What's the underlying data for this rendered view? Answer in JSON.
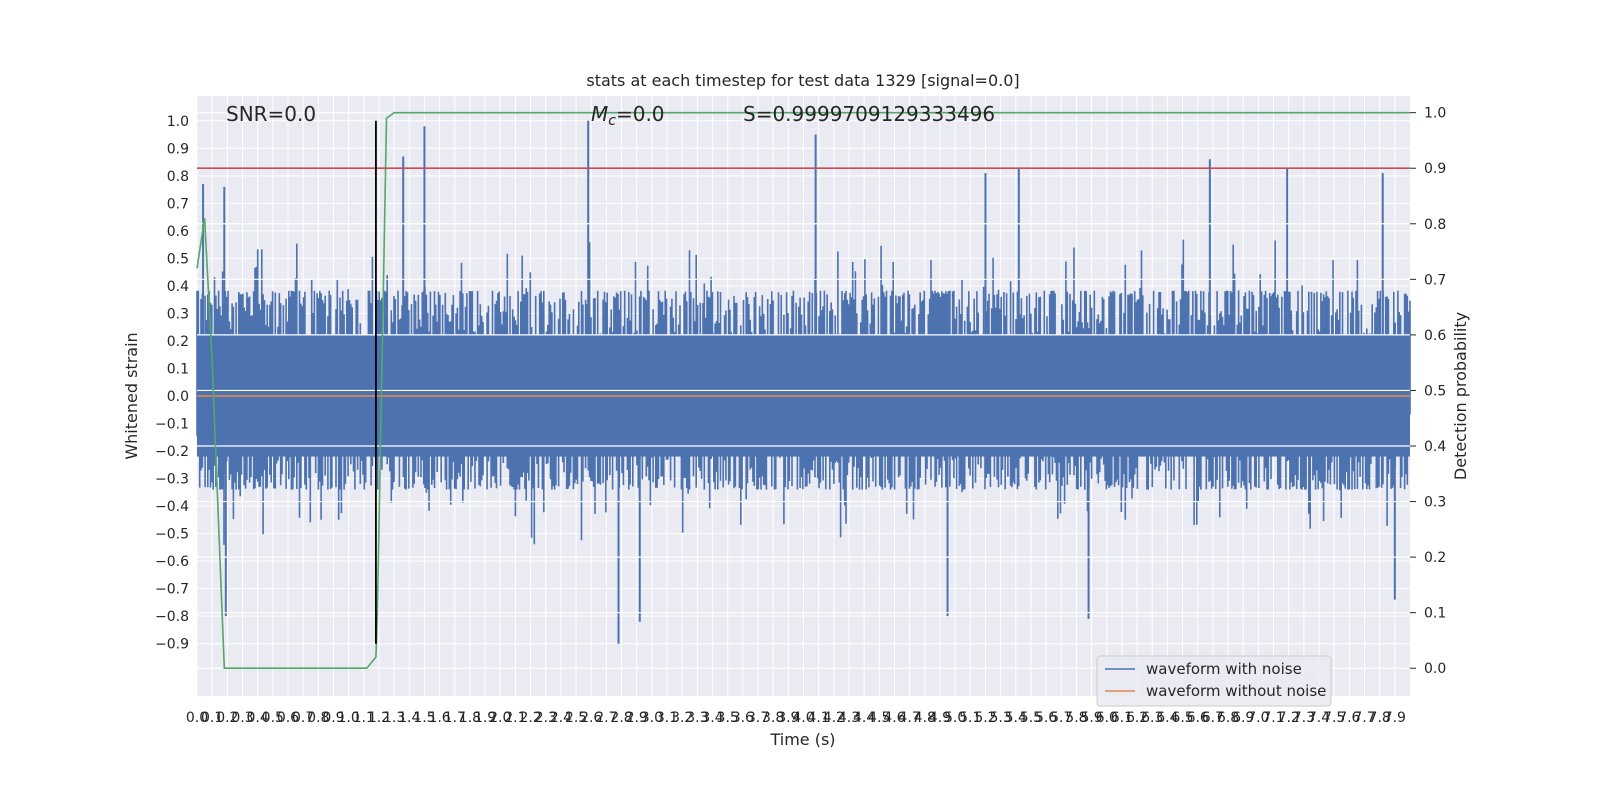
{
  "chart_data": {
    "type": "line",
    "title": "stats at each timestep for test data 1329 [signal=0.0]",
    "xlabel": "Time (s)",
    "ylabel_left": "Whitened strain",
    "ylabel_right": "Detection probability",
    "xlim": [
      0.0,
      8.0
    ],
    "ylim_left": [
      -1.09,
      1.09
    ],
    "ylim_right": [
      -0.05,
      1.03
    ],
    "x_ticks": [
      "0.0",
      "0.1",
      "0.2",
      "0.3",
      "0.4",
      "0.5",
      "0.6",
      "0.7",
      "0.8",
      "0.9",
      "1.0",
      "1.1",
      "1.2",
      "1.3",
      "1.4",
      "1.5",
      "1.6",
      "1.7",
      "1.8",
      "1.9",
      "2.0",
      "2.1",
      "2.2",
      "2.3",
      "2.4",
      "2.5",
      "2.6",
      "2.7",
      "2.8",
      "2.9",
      "3.0",
      "3.1",
      "3.2",
      "3.3",
      "3.4",
      "3.5",
      "3.6",
      "3.7",
      "3.8",
      "3.9",
      "4.0",
      "4.1",
      "4.2",
      "4.3",
      "4.4",
      "4.5",
      "4.6",
      "4.7",
      "4.8",
      "4.9",
      "5.0",
      "5.1",
      "5.2",
      "5.3",
      "5.4",
      "5.5",
      "5.6",
      "5.7",
      "5.8",
      "5.9",
      "6.0",
      "6.1",
      "6.2",
      "6.3",
      "6.4",
      "6.5",
      "6.6",
      "6.7",
      "6.8",
      "6.9",
      "7.0",
      "7.1",
      "7.2",
      "7.3",
      "7.4",
      "7.5",
      "7.6",
      "7.7",
      "7.8",
      "7.9"
    ],
    "y_ticks_left": [
      "−0.9",
      "−0.8",
      "−0.7",
      "−0.6",
      "−0.5",
      "−0.4",
      "−0.3",
      "−0.2",
      "−0.1",
      "0.0",
      "0.1",
      "0.2",
      "0.3",
      "0.4",
      "0.5",
      "0.6",
      "0.7",
      "0.8",
      "0.9",
      "1.0"
    ],
    "y_ticks_right": [
      "0.0",
      "0.1",
      "0.2",
      "0.3",
      "0.4",
      "0.5",
      "0.6",
      "0.7",
      "0.8",
      "0.9",
      "1.0"
    ],
    "annotations": {
      "snr": "SNR=0.0",
      "mc_symbol": "M",
      "mc_sub": "c",
      "mc_value": "=0.0",
      "score": "S=0.9999709129333496"
    },
    "series": [
      {
        "name": "waveform with noise",
        "color": "#4c72b0",
        "axis": "left",
        "envelope_typical": [
          -0.4,
          0.45
        ],
        "spikes": [
          {
            "x": 0.04,
            "y": 0.77
          },
          {
            "x": 0.18,
            "y": 0.76
          },
          {
            "x": 0.19,
            "y": -0.8
          },
          {
            "x": 1.36,
            "y": 0.87
          },
          {
            "x": 1.5,
            "y": 0.98
          },
          {
            "x": 2.58,
            "y": 1.0
          },
          {
            "x": 2.78,
            "y": -0.9
          },
          {
            "x": 2.92,
            "y": -0.82
          },
          {
            "x": 4.08,
            "y": 0.95
          },
          {
            "x": 4.95,
            "y": -0.8
          },
          {
            "x": 5.2,
            "y": 0.81
          },
          {
            "x": 5.42,
            "y": 0.83
          },
          {
            "x": 5.88,
            "y": -0.81
          },
          {
            "x": 6.68,
            "y": 0.86
          },
          {
            "x": 7.19,
            "y": 0.83
          },
          {
            "x": 7.82,
            "y": 0.81
          },
          {
            "x": 7.9,
            "y": -0.74
          }
        ]
      },
      {
        "name": "waveform without noise",
        "color": "#dd8452",
        "axis": "left",
        "constant": 0.0
      },
      {
        "name": "",
        "color": "#55a868",
        "axis": "right",
        "x": [
          0.0,
          0.05,
          0.1,
          0.18,
          1.12,
          1.18,
          1.19,
          1.25,
          1.3,
          8.0
        ],
        "y": [
          0.72,
          0.81,
          0.55,
          0.0,
          0.0,
          0.02,
          0.1,
          0.99,
          1.0,
          1.0
        ]
      }
    ],
    "reference_lines": [
      {
        "axis": "right",
        "orientation": "horizontal",
        "value": 0.9,
        "color": "#c44e52"
      },
      {
        "axis": "left",
        "orientation": "vertical",
        "value": 1.18,
        "color": "#000000",
        "ymin": -0.9,
        "ymax": 1.0
      }
    ],
    "legend": {
      "placement": "lower right",
      "entries": [
        "waveform with noise",
        "waveform without noise"
      ]
    },
    "grid": true
  }
}
